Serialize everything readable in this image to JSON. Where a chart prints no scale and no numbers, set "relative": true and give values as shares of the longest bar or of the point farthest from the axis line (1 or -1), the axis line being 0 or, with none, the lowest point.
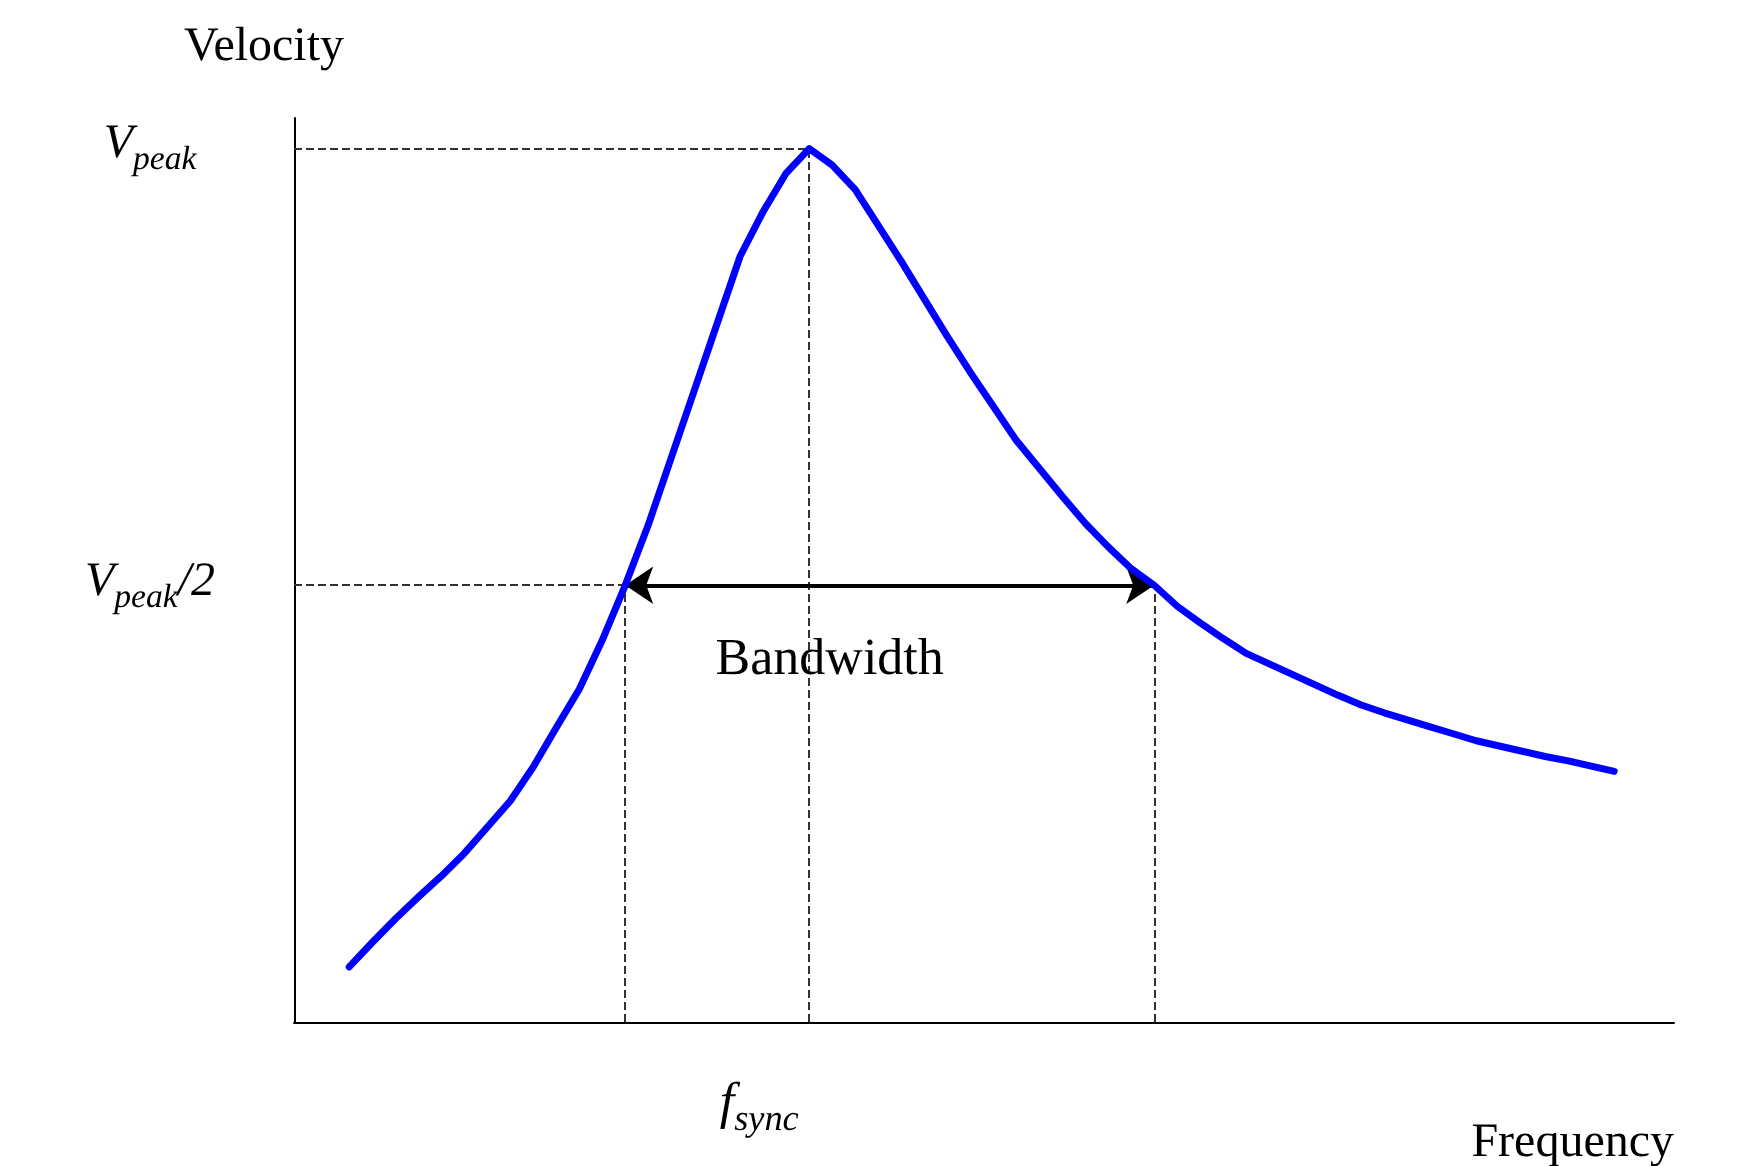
{
  "chart_data": {
    "type": "line",
    "relative": true,
    "xlabel": "Frequency",
    "ylabel": "Velocity",
    "categories": [
      null,
      null,
      null,
      null,
      null,
      null,
      null,
      null,
      null,
      null,
      null,
      null,
      null,
      null,
      null,
      null,
      null,
      null,
      null,
      null,
      null,
      null,
      null,
      null,
      null,
      null,
      null,
      null,
      null,
      null,
      null,
      null,
      null,
      null,
      null,
      null,
      null,
      null,
      null,
      null,
      null,
      null,
      null,
      null,
      null,
      null,
      null,
      null,
      null,
      null,
      null,
      null,
      null,
      null,
      null,
      null
    ],
    "grid": false,
    "marker": "none",
    "line_style": "solid",
    "series": [
      {
        "color": "#0000ff",
        "values": [
          0.063,
          0.091,
          0.118,
          0.143,
          0.167,
          0.193,
          0.223,
          0.253,
          0.292,
          0.337,
          0.381,
          0.437,
          0.5,
          0.569,
          0.646,
          0.723,
          0.8,
          0.877,
          0.928,
          0.972,
          1.0,
          0.981,
          0.953,
          0.912,
          0.871,
          0.828,
          0.785,
          0.744,
          0.705,
          0.666,
          0.634,
          0.602,
          0.571,
          0.544,
          0.519,
          0.5,
          0.476,
          0.457,
          0.439,
          0.422,
          0.41,
          0.398,
          0.386,
          0.374,
          0.363,
          0.354,
          0.346,
          0.338,
          0.33,
          0.322,
          0.316,
          0.31,
          0.304,
          0.299,
          0.293,
          0.287
        ]
      }
    ],
    "ref_lines": [
      {
        "axis": "y",
        "value": 1,
        "label": "V$_{peak}$",
        "line_style": "dashed",
        "color": "#333333"
      },
      {
        "axis": "y",
        "value": 0.5,
        "label": "V$_{peak}$/2",
        "line_style": "dashed",
        "color": "#333333"
      }
    ],
    "annotations": [
      "f$_{sync}$",
      "Bandwidth"
    ]
  }
}
